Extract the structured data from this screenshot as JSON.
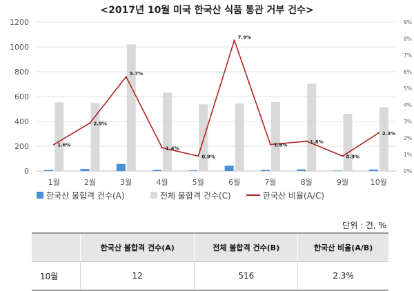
{
  "chart_data": {
    "type": "bar+line",
    "title": "<2017년 10월 미국 한국산 식품 통관 거부 건수>",
    "categories": [
      "1월",
      "2월",
      "3월",
      "4월",
      "5월",
      "6월",
      "7월",
      "8월",
      "9월",
      "10월"
    ],
    "series": [
      {
        "name": "한국산 불합격 건수(A)",
        "type": "bar",
        "axis": "left",
        "color": "#4a90d9",
        "values": [
          9,
          16,
          57,
          9,
          5,
          43,
          9,
          13,
          4,
          12
        ]
      },
      {
        "name": "전체 불합격 건수(C)",
        "type": "bar",
        "axis": "left",
        "color": "#d9d9d9",
        "values": [
          553,
          547,
          1020,
          632,
          537,
          543,
          556,
          703,
          461,
          516
        ]
      },
      {
        "name": "한국산 비율(A/C)",
        "type": "line",
        "axis": "right",
        "color": "#b22222",
        "values": [
          1.6,
          2.9,
          5.7,
          1.4,
          0.9,
          7.9,
          1.6,
          1.8,
          0.9,
          2.3
        ],
        "labels": [
          "1.6%",
          "2.9%",
          "5.7%",
          "1.4%",
          "0.9%",
          "7.9%",
          "1.6%",
          "1.8%",
          "0.9%",
          "2.3%"
        ]
      }
    ],
    "ylim": [
      0,
      1200
    ],
    "yticks": [
      "0",
      "200",
      "400",
      "600",
      "800",
      "1000",
      "1200"
    ],
    "y2lim": [
      0,
      9
    ],
    "y2ticks": [
      "0%",
      "1%",
      "2%",
      "3%",
      "4%",
      "5%",
      "6%",
      "7%",
      "8%",
      "9%"
    ],
    "grid": true,
    "legend": "bottom"
  },
  "unit_note": "단위 : 건, %",
  "table": {
    "headers": [
      "",
      "한국산 불합격 건수(A)",
      "전체 불합격 건수(B)",
      "한국산 비율(A/B)"
    ],
    "rows": [
      [
        "10월",
        "12",
        "516",
        "2.3%"
      ]
    ]
  }
}
